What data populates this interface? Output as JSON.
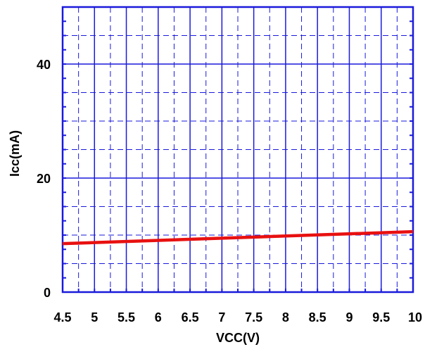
{
  "chart_data": {
    "type": "line",
    "title": "",
    "xlabel": "VCC(V)",
    "ylabel": "Icc(mA)",
    "xlim": [
      4.5,
      10
    ],
    "ylim": [
      0,
      50
    ],
    "x_ticks": [
      4.5,
      5,
      5.5,
      6,
      6.5,
      7,
      7.5,
      8,
      8.5,
      9,
      9.5,
      10
    ],
    "x_tick_labels": [
      "4.5",
      "5",
      "5.5",
      "6",
      "6.5",
      "7",
      "7.5",
      "8",
      "8.5",
      "9",
      "9.5",
      "10"
    ],
    "y_ticks": [
      0,
      20,
      40
    ],
    "y_tick_labels": [
      "0",
      "20",
      "40"
    ],
    "grid": true,
    "series": [
      {
        "x": [
          4.5,
          10
        ],
        "y": [
          8.5,
          10.6
        ]
      }
    ],
    "colors": {
      "axis": "#1a1adc",
      "series": "#e81010"
    }
  }
}
